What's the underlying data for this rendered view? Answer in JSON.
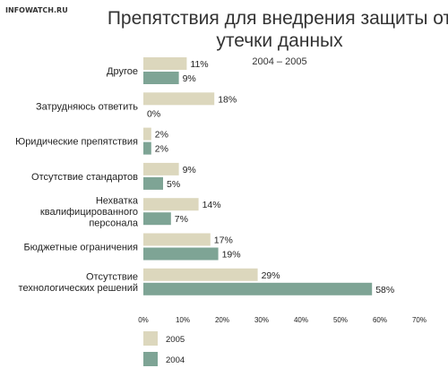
{
  "header": {
    "source": "INFOWATCH.RU",
    "title_line1": "Препятствия для внедрения защиты от",
    "title_line2": "утечки данных",
    "subtitle": "2004 – 2005"
  },
  "chart_data": {
    "type": "bar",
    "orientation": "horizontal",
    "title": "Препятствия для внедрения защиты от утечки данных",
    "subtitle": "2004 – 2005",
    "categories": [
      [
        "Другое"
      ],
      [
        "Затрудняюсь ответить"
      ],
      [
        "Юридические препятствия"
      ],
      [
        "Отсутствие стандартов"
      ],
      [
        "Нехватка",
        "квалифицированного",
        "персонала"
      ],
      [
        "Бюджетные ограничения"
      ],
      [
        "Отсутствие",
        "технологических решений"
      ]
    ],
    "series": [
      {
        "name": "2005",
        "color": "#dcd7bd",
        "values": [
          11,
          18,
          2,
          9,
          14,
          17,
          29
        ]
      },
      {
        "name": "2004",
        "color": "#7ea495",
        "values": [
          9,
          0,
          2,
          5,
          7,
          19,
          58
        ]
      }
    ],
    "value_suffix": "%",
    "xlim": [
      0,
      70
    ],
    "xticks": [
      0,
      10,
      20,
      30,
      40,
      50,
      60,
      70
    ],
    "xtick_labels": [
      "0%",
      "10%",
      "20%",
      "30%",
      "40%",
      "50%",
      "60%",
      "70%"
    ],
    "grid": false,
    "legend_position": "bottom-left"
  }
}
